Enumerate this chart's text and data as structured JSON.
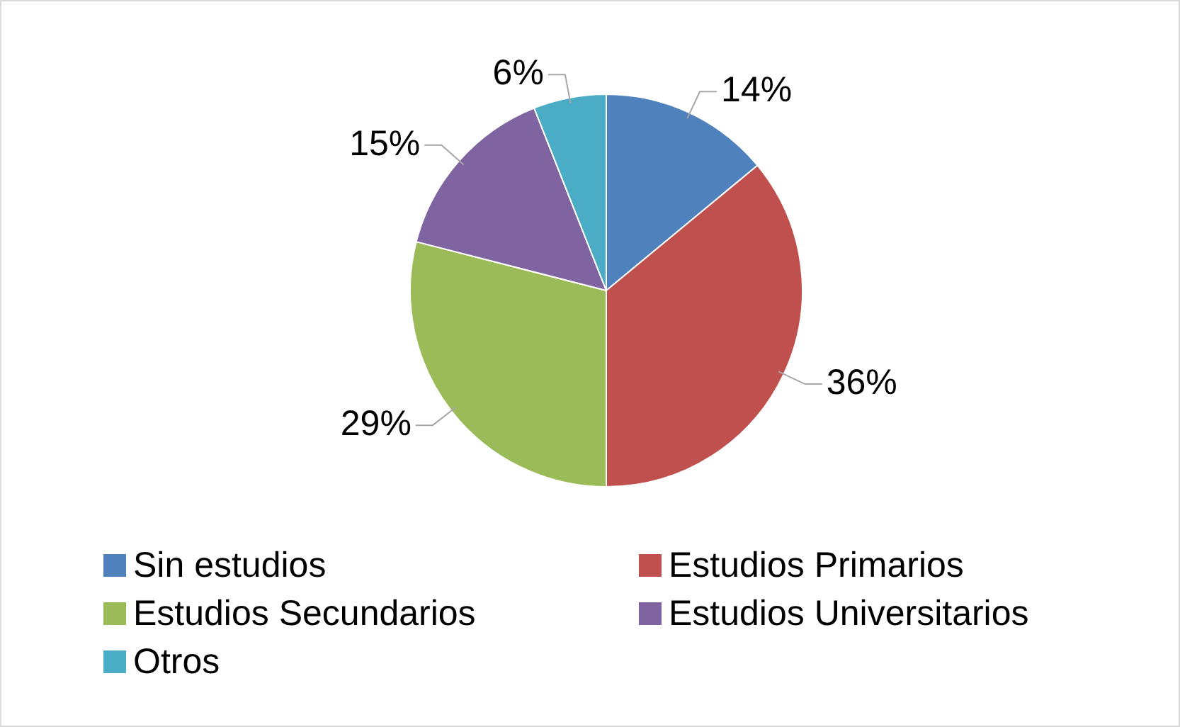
{
  "chart_data": {
    "type": "pie",
    "categories": [
      "Sin estudios",
      "Estudios Primarios",
      "Estudios Secundarios",
      "Estudios Universitarios",
      "Otros"
    ],
    "values": [
      14,
      36,
      29,
      15,
      6
    ],
    "colors": [
      "#4f81bd",
      "#c0504d",
      "#9bbb59",
      "#8064a2",
      "#4bacc6"
    ],
    "value_labels": [
      "14%",
      "36%",
      "29%",
      "15%",
      "6%"
    ],
    "legend": "bottom"
  }
}
